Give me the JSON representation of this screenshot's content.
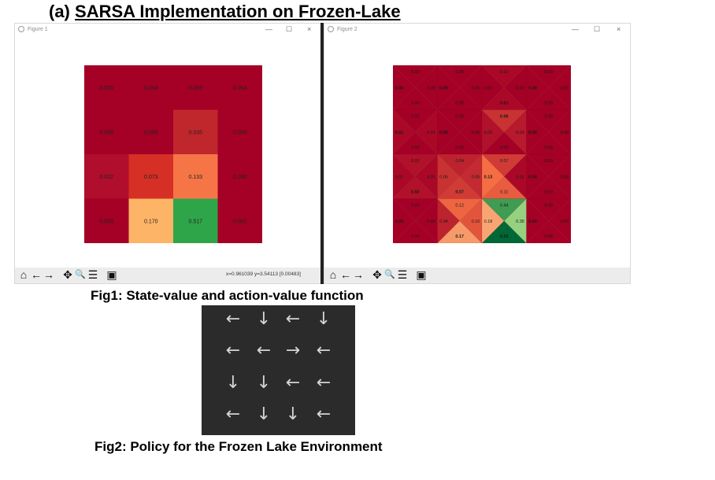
{
  "heading": {
    "label": "(a)",
    "title": "SARSA Implementation on Frozen-Lake"
  },
  "figure1": {
    "window_title": "Figure 1",
    "controls": {
      "minimize": "—",
      "maximize": "☐",
      "close": "×"
    },
    "coords": "x=0.961039   y=3.54113   [0.00483]",
    "state_values": [
      [
        "0.005",
        "0.004",
        "0.009",
        "0.004"
      ],
      [
        "0.008",
        "0.000",
        "0.035",
        "0.000"
      ],
      [
        "0.022",
        "0.073",
        "0.133",
        "0.000"
      ],
      [
        "0.000",
        "0.170",
        "0.517",
        "0.000"
      ]
    ],
    "cell_colors": [
      [
        "#a50026",
        "#a50026",
        "#a50026",
        "#a50026"
      ],
      [
        "#a50026",
        "#a50026",
        "#c0272d",
        "#a50026"
      ],
      [
        "#b00e2c",
        "#d62f26",
        "#f57547",
        "#a50026"
      ],
      [
        "#a50026",
        "#fdb466",
        "#2fa54a",
        "#a50026"
      ]
    ]
  },
  "figure2": {
    "window_title": "Figure 2",
    "controls": {
      "minimize": "—",
      "maximize": "☐",
      "close": "×"
    },
    "q_values": [
      [
        [
          "0.00",
          "0.00",
          "0.00",
          "0.00"
        ],
        [
          "0.00",
          "0.00",
          "0.00",
          "0.00"
        ],
        [
          "0.00",
          "0.01",
          "0.00",
          "0.01"
        ],
        [
          "0.00",
          "0.00",
          "0.00",
          "0.00"
        ]
      ],
      [
        [
          "0.01",
          "0.00",
          "0.01",
          "0.00"
        ],
        [
          "0.00",
          "0.00",
          "0.00",
          "0.00"
        ],
        [
          "0.02",
          "0.00",
          "0.03",
          "0.06"
        ],
        [
          "0.00",
          "0.00",
          "0.00",
          "0.00"
        ]
      ],
      [
        [
          "0.01",
          "0.02",
          "0.01",
          "0.02"
        ],
        [
          "0.06",
          "0.07",
          "0.05",
          "0.04"
        ],
        [
          "0.13",
          "0.11",
          "0.01",
          "0.07"
        ],
        [
          "0.00",
          "0.00",
          "0.00",
          "0.00"
        ]
      ],
      [
        [
          "0.00",
          "0.00",
          "0.00",
          "0.00"
        ],
        [
          "0.04",
          "0.17",
          "0.10",
          "0.12"
        ],
        [
          "0.18",
          "0.52",
          "0.35",
          "0.44"
        ],
        [
          "0.00",
          "0.00",
          "0.00",
          "0.00"
        ]
      ]
    ]
  },
  "toolbar_tools": [
    {
      "name": "home-icon",
      "glyph": "⌂"
    },
    {
      "name": "back-icon",
      "glyph": "←"
    },
    {
      "name": "forward-icon",
      "glyph": "→"
    },
    {
      "name": "pan-icon",
      "glyph": "✥"
    },
    {
      "name": "zoom-icon",
      "glyph": "🔍"
    },
    {
      "name": "configure-icon",
      "glyph": "☰"
    },
    {
      "name": "save-icon",
      "glyph": "▣"
    }
  ],
  "caption1": "Fig1: State-value and action-value function",
  "caption2": "Fig2: Policy for the Frozen Lake Environment",
  "policy": [
    [
      "←",
      "↓",
      "←",
      "↓"
    ],
    [
      "←",
      "←",
      "→",
      "←"
    ],
    [
      "↓",
      "↓",
      "←",
      "←"
    ],
    [
      "←",
      "↓",
      "↓",
      "←"
    ]
  ]
}
